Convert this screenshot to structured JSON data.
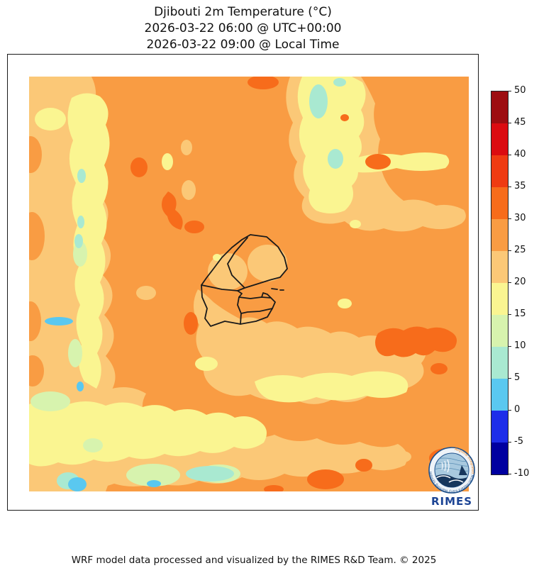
{
  "title": {
    "line1": "Djibouti 2m Temperature (°C)",
    "line2": "2026-03-22 06:00 @ UTC+00:00",
    "line3": "2026-03-22 09:00 @ Local Time"
  },
  "colorbar": {
    "unit": "°C",
    "min": -10,
    "max": 50,
    "step": 5,
    "tick_labels": [
      "50",
      "45",
      "40",
      "35",
      "30",
      "25",
      "20",
      "15",
      "10",
      "5",
      "0",
      "-5",
      "-10"
    ],
    "levels": [
      {
        "from": -10,
        "to": -5,
        "color": "#0000A0"
      },
      {
        "from": -5,
        "to": 0,
        "color": "#1D2DE9"
      },
      {
        "from": 0,
        "to": 5,
        "color": "#5AC8F0"
      },
      {
        "from": 5,
        "to": 10,
        "color": "#A9E9D1"
      },
      {
        "from": 10,
        "to": 15,
        "color": "#D7F3AE"
      },
      {
        "from": 15,
        "to": 20,
        "color": "#FAF591"
      },
      {
        "from": 20,
        "to": 25,
        "color": "#FBC877"
      },
      {
        "from": 25,
        "to": 30,
        "color": "#F99C43"
      },
      {
        "from": 30,
        "to": 35,
        "color": "#F76C1B"
      },
      {
        "from": 35,
        "to": 40,
        "color": "#EF3B12"
      },
      {
        "from": 40,
        "to": 45,
        "color": "#DB0B10"
      },
      {
        "from": 45,
        "to": 50,
        "color": "#9D0D10"
      }
    ]
  },
  "map": {
    "region": "Djibouti",
    "boundary_color": "#1a1a1a"
  },
  "logo": {
    "name": "RIMES",
    "ring_text": "Regional Integrated Multi-Hazard Early Warning System"
  },
  "footer": "WRF model data processed and visualized by the RIMES R&D Team. © 2025"
}
